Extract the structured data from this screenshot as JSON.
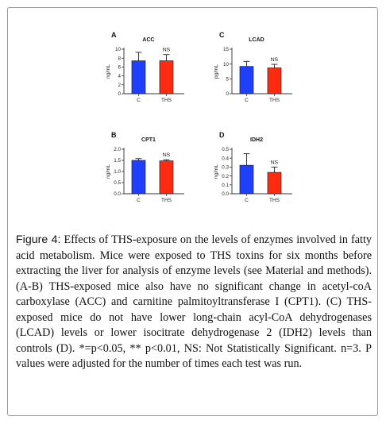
{
  "colors": {
    "control": "#1f3fff",
    "ths": "#ff2a10",
    "axis": "#333333"
  },
  "chart_data": [
    {
      "panel": "A",
      "type": "bar",
      "title": "ACC",
      "ylabel": "ng/mL",
      "ylim": [
        0,
        10
      ],
      "yticks": [
        0,
        2,
        4,
        6,
        8,
        10
      ],
      "categories": [
        "C",
        "THS"
      ],
      "values": [
        7.4,
        7.4
      ],
      "errors": [
        1.9,
        1.4
      ],
      "annotation": "NS"
    },
    {
      "panel": "C",
      "type": "bar",
      "title": "LCAD",
      "ylabel": "pg/mL",
      "ylim": [
        0,
        15
      ],
      "yticks": [
        0,
        5,
        10,
        15
      ],
      "categories": [
        "C",
        "THS"
      ],
      "values": [
        9.2,
        8.7
      ],
      "errors": [
        1.7,
        1.2
      ],
      "annotation": "NS"
    },
    {
      "panel": "B",
      "type": "bar",
      "title": "CPT1",
      "ylabel": "ng/mL",
      "ylim": [
        0,
        2.0
      ],
      "yticks": [
        0.0,
        0.5,
        1.0,
        1.5,
        2.0
      ],
      "ytick_labels": [
        "0.0",
        "0.5",
        "1.0",
        "1.5",
        "2.0"
      ],
      "categories": [
        "C",
        "THS"
      ],
      "values": [
        1.5,
        1.48
      ],
      "errors": [
        0.08,
        0.05
      ],
      "annotation": "NS"
    },
    {
      "panel": "D",
      "type": "bar",
      "title": "IDH2",
      "ylabel": "ng/mL",
      "ylim": [
        0,
        0.5
      ],
      "yticks": [
        0.0,
        0.1,
        0.2,
        0.3,
        0.4,
        0.5
      ],
      "ytick_labels": [
        "0.0",
        "0.1",
        "0.2",
        "0.3",
        "0.4",
        "0.5"
      ],
      "categories": [
        "C",
        "THS"
      ],
      "values": [
        0.32,
        0.24
      ],
      "errors": [
        0.13,
        0.06
      ],
      "annotation": "NS"
    }
  ],
  "caption": {
    "label": "Figure 4:",
    "text": " Effects of THS-exposure on the levels of enzymes involved in fatty acid metabolism. Mice were exposed to THS toxins for six months before extracting the liver for analysis of enzyme levels (see Material and methods). (A-B) THS-exposed mice also have no significant change in acetyl-coA carboxylase (ACC) and carnitine palmitoyltransferase I (CPT1). (C) THS-exposed mice do not have lower long-chain acyl-CoA dehydrogenases (LCAD) levels or lower isocitrate dehydrogenase 2 (IDH2) levels than controls (D). *=p<0.05, ** p<0.01, NS: Not Statistically Significant. n=3. P values were adjusted for the number of times each test was run."
  }
}
